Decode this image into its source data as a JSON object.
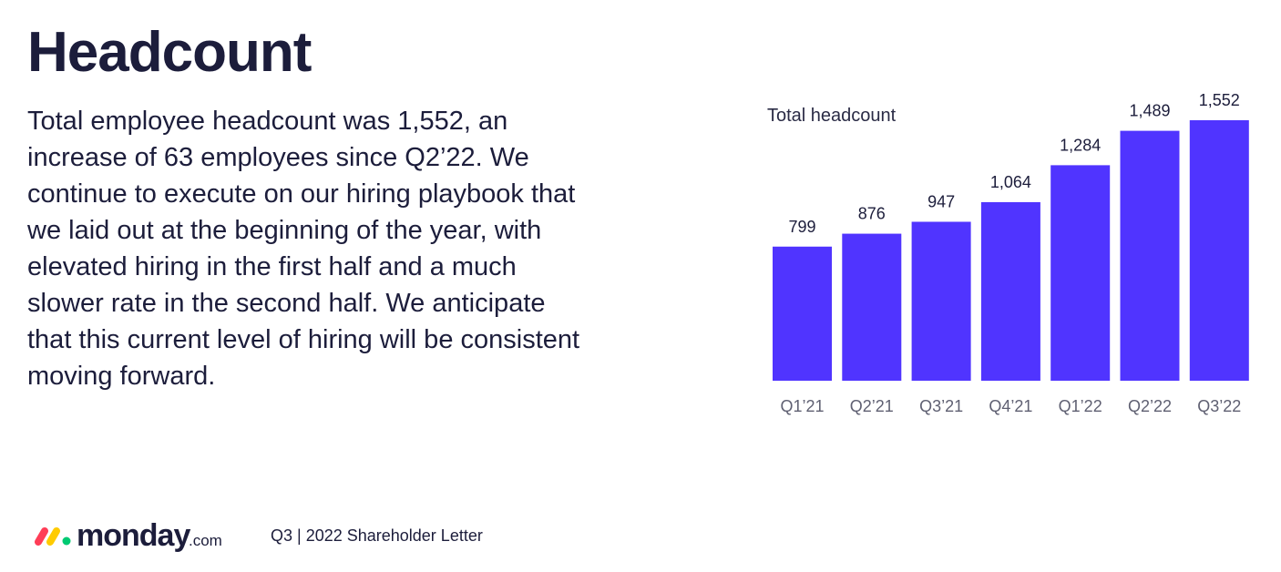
{
  "page": {
    "title": "Headcount",
    "body": "Total employee headcount was 1,552, an increase of 63 employees since Q2’22. We continue to execute on our hiring playbook that we laid out at the beginning of the year, with elevated hiring in the first half and a much slower rate in the second half. We anticipate that this current level of hiring will be consistent moving forward."
  },
  "chart_data": {
    "type": "bar",
    "title": "Total headcount",
    "categories": [
      "Q1’21",
      "Q2’21",
      "Q3’21",
      "Q4’21",
      "Q1’22",
      "Q2’22",
      "Q3’22"
    ],
    "values": [
      799,
      876,
      947,
      1064,
      1284,
      1489,
      1552
    ],
    "value_labels": [
      "799",
      "876",
      "947",
      "1,064",
      "1,284",
      "1,489",
      "1,552"
    ],
    "xlabel": "",
    "ylabel": "",
    "ylim": [
      0,
      1552
    ],
    "grid": false,
    "colors": {
      "bar": "#5034ff"
    }
  },
  "footer": {
    "logo_word": "monday",
    "logo_tld": ".com",
    "text": "Q3 | 2022  Shareholder Letter",
    "logo_colors": [
      "#ff3d57",
      "#ffcb00",
      "#00ca72"
    ]
  }
}
